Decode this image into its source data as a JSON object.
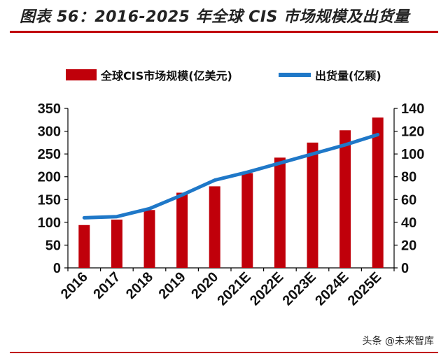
{
  "header": {
    "title": "图表 56：2016-2025 年全球 CIS 市场规模及出货量",
    "watermark": "头条 @未来智库"
  },
  "colors": {
    "bar": "#c0000a",
    "line": "#1f78c8",
    "rule": "#c0000a"
  },
  "chart_data": {
    "type": "bar",
    "categories": [
      "2016",
      "2017",
      "2018",
      "2019",
      "2020",
      "2021E",
      "2022E",
      "2023E",
      "2024E",
      "2025E"
    ],
    "series": [
      {
        "name": "全球CIS市场规模(亿美元)",
        "type": "bar",
        "axis": "left",
        "values": [
          94,
          106,
          127,
          165,
          179,
          208,
          242,
          275,
          302,
          330
        ]
      },
      {
        "name": "出货量(亿颗)",
        "type": "line",
        "axis": "right",
        "values": [
          44,
          45,
          52,
          64,
          77,
          84,
          92,
          100,
          108,
          117
        ]
      }
    ],
    "y_left": {
      "min": 0,
      "max": 350,
      "ticks": [
        0,
        50,
        100,
        150,
        200,
        250,
        300,
        350
      ]
    },
    "y_right": {
      "min": 0,
      "max": 140,
      "ticks": [
        0,
        20,
        40,
        60,
        80,
        100,
        120,
        140
      ]
    },
    "legend": "top",
    "grid": false
  }
}
